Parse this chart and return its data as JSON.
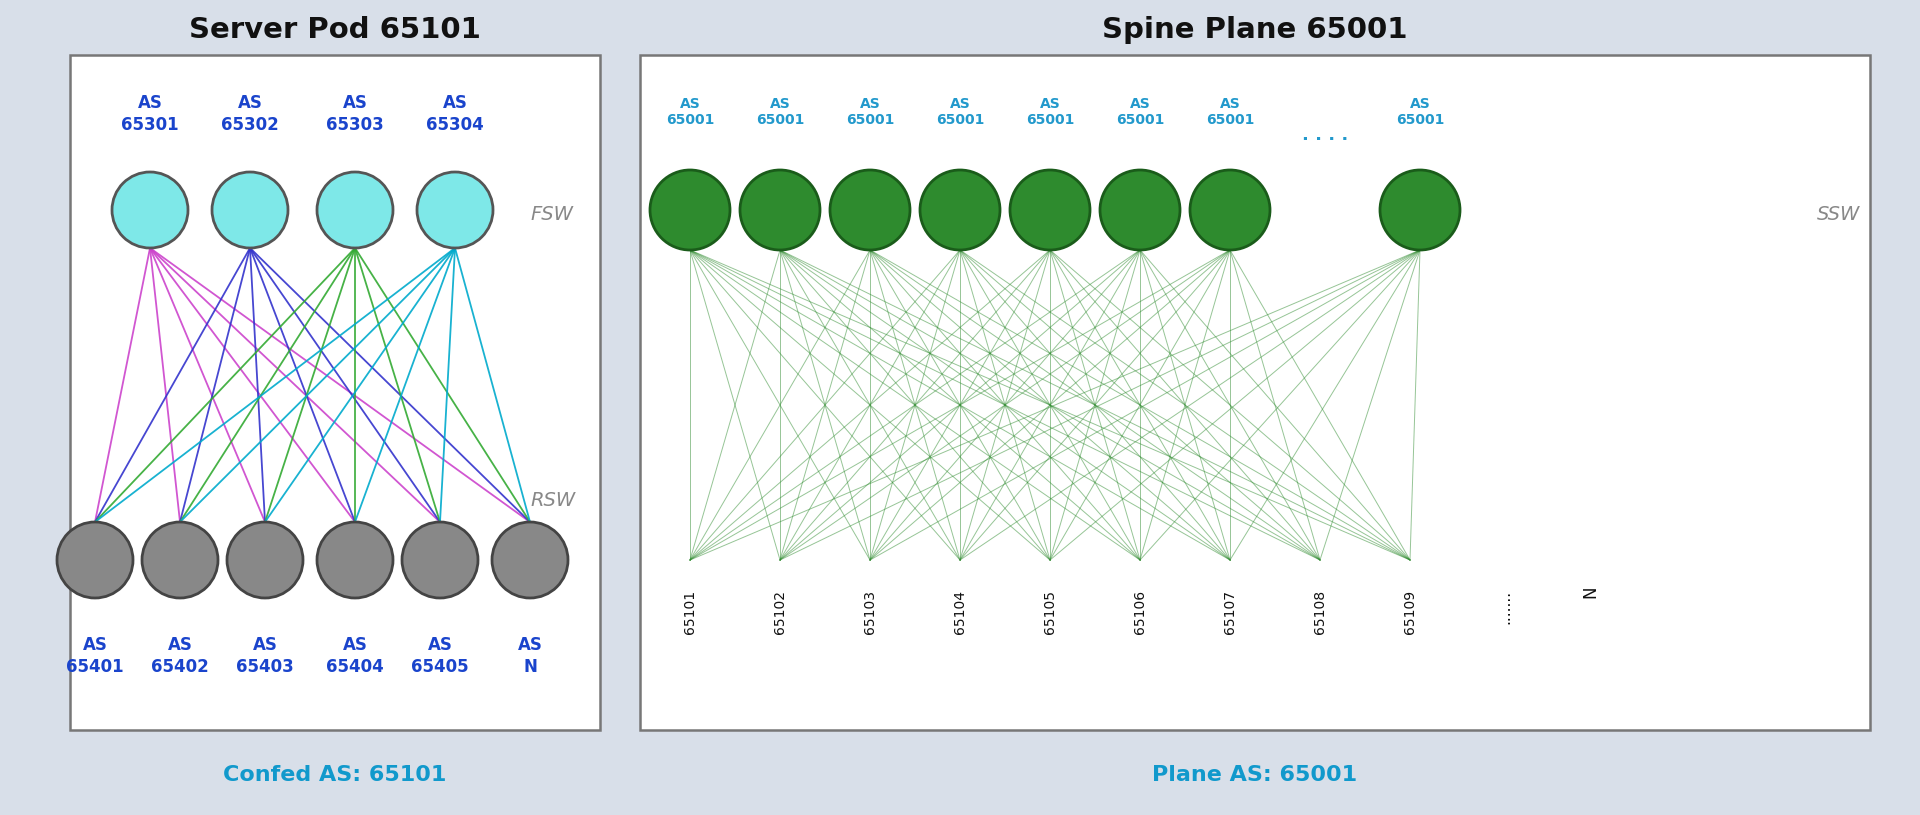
{
  "bg_color": "#d8dfe9",
  "fig_width": 19.2,
  "fig_height": 8.15,
  "pod_title": "Server Pod 65101",
  "pod_confed": "Confed AS: 65101",
  "fsw_as_labels": [
    "AS\n65301",
    "AS\n65302",
    "AS\n65303",
    "AS\n65304"
  ],
  "fsw_color": "#7ee8e8",
  "fsw_edge_color": "#555555",
  "rsw_as_labels": [
    "AS\n65401",
    "AS\n65402",
    "AS\n65403",
    "AS\n65404",
    "AS\n65405",
    "AS\nN"
  ],
  "rsw_color": "#888888",
  "rsw_edge_color": "#444444",
  "fsw_line_colors": [
    "#cc44cc",
    "#3333cc",
    "#33aa33",
    "#00aacc"
  ],
  "spine_title": "Spine Plane 65001",
  "spine_confed": "Plane AS: 65001",
  "ssw_as_label": "AS\n65001",
  "ssw_color": "#2e8b2e",
  "ssw_edge_color": "#1a5c1a",
  "green_line_color": "#2e8b2e",
  "blue_text_color": "#1a44cc",
  "gray_text_color": "#888888",
  "black_text_color": "#111111",
  "cyan_label_color": "#1199cc",
  "ssw_label_color": "#2299cc",
  "white": "#ffffff",
  "box_edge_color": "#777777"
}
